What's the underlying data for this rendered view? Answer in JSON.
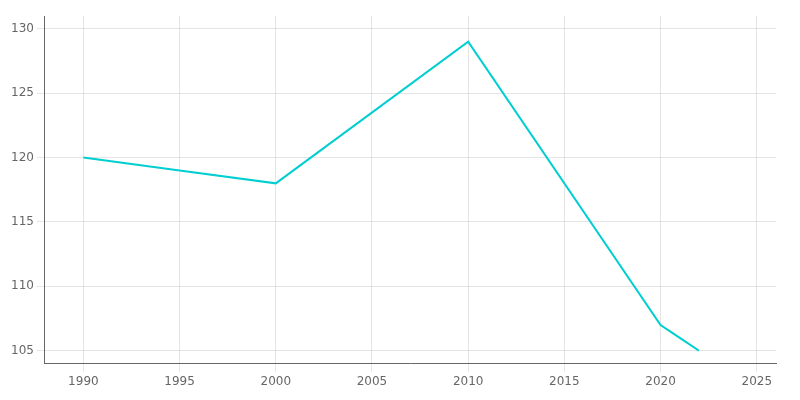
{
  "chart_data": {
    "type": "line",
    "x": [
      1990,
      1995,
      2000,
      2010,
      2020,
      2021,
      2022
    ],
    "values": [
      120,
      119,
      118,
      129,
      107,
      106,
      105
    ],
    "color": "#00CED1",
    "xlim": [
      1988,
      2026
    ],
    "ylim": [
      104,
      131
    ],
    "xticks": [
      1990,
      1995,
      2000,
      2005,
      2010,
      2015,
      2020,
      2025
    ],
    "yticks": [
      105,
      110,
      115,
      120,
      125,
      130
    ],
    "grid": true
  }
}
